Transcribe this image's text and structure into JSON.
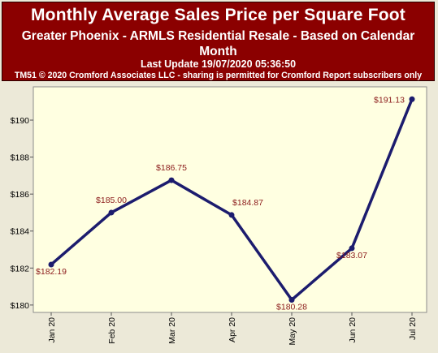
{
  "header": {
    "title": "Monthly Average Sales Price per Square Foot",
    "subtitle": "Greater Phoenix - ARMLS Residential Resale - Based on Calendar Month",
    "last_update": "Last Update 19/07/2020 05:36:50",
    "copyright": "TM51 © 2020 Cromford Associates LLC - sharing is permitted for Cromford Report subscribers only"
  },
  "colors": {
    "header_bg": "#8b0000",
    "plot_bg": "#ffffe1",
    "line": "#1c1c6e",
    "label": "#8b1a1a"
  },
  "chart_data": {
    "type": "line",
    "categories": [
      "Jan 20",
      "Feb 20",
      "Mar 20",
      "Apr 20",
      "May 20",
      "Jun 20",
      "Jul 20"
    ],
    "values": [
      182.19,
      185.0,
      186.75,
      184.87,
      180.28,
      183.07,
      191.13
    ],
    "data_labels": [
      "$182.19",
      "$185.00",
      "$186.75",
      "$184.87",
      "$180.28",
      "$183.07",
      "$191.13"
    ],
    "y_ticks": [
      180,
      182,
      184,
      186,
      188,
      190
    ],
    "y_tick_labels": [
      "$180",
      "$182",
      "$184",
      "$186",
      "$188",
      "$190"
    ],
    "ylim": [
      179.6,
      191.8
    ],
    "grid": false
  }
}
